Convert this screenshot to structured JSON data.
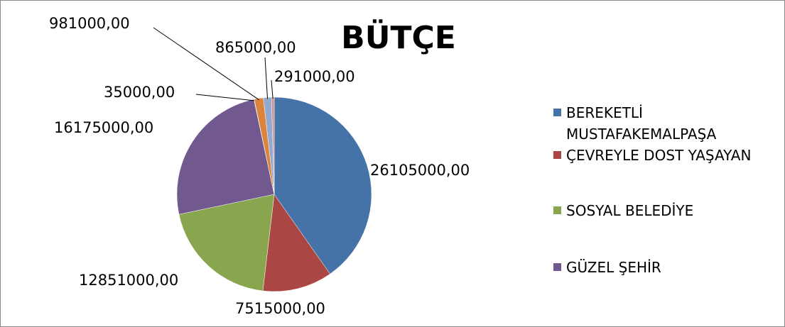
{
  "chart_data": {
    "type": "pie",
    "title": "BÜTÇE",
    "categories": [
      "BEREKETLİ MUSTAFAKEMALPAŞA",
      "ÇEVREYLE DOST YAŞAYAN",
      "SOSYAL BELEDİYE",
      "GÜZEL ŞEHİR",
      null,
      null,
      null,
      null
    ],
    "values": [
      26105000,
      7515000,
      12851000,
      16175000,
      35000,
      981000,
      865000,
      291000
    ],
    "value_labels": [
      "26105000,00",
      "7515000,00",
      "12851000,00",
      "16175000,00",
      "35000,00",
      "981000,00",
      "865000,00",
      "291000,00"
    ],
    "colors": [
      "#4572a7",
      "#aa4643",
      "#89a54e",
      "#71588f",
      "#4198af",
      "#db843d",
      "#93a9cf",
      "#d19392"
    ],
    "legend": "right"
  }
}
